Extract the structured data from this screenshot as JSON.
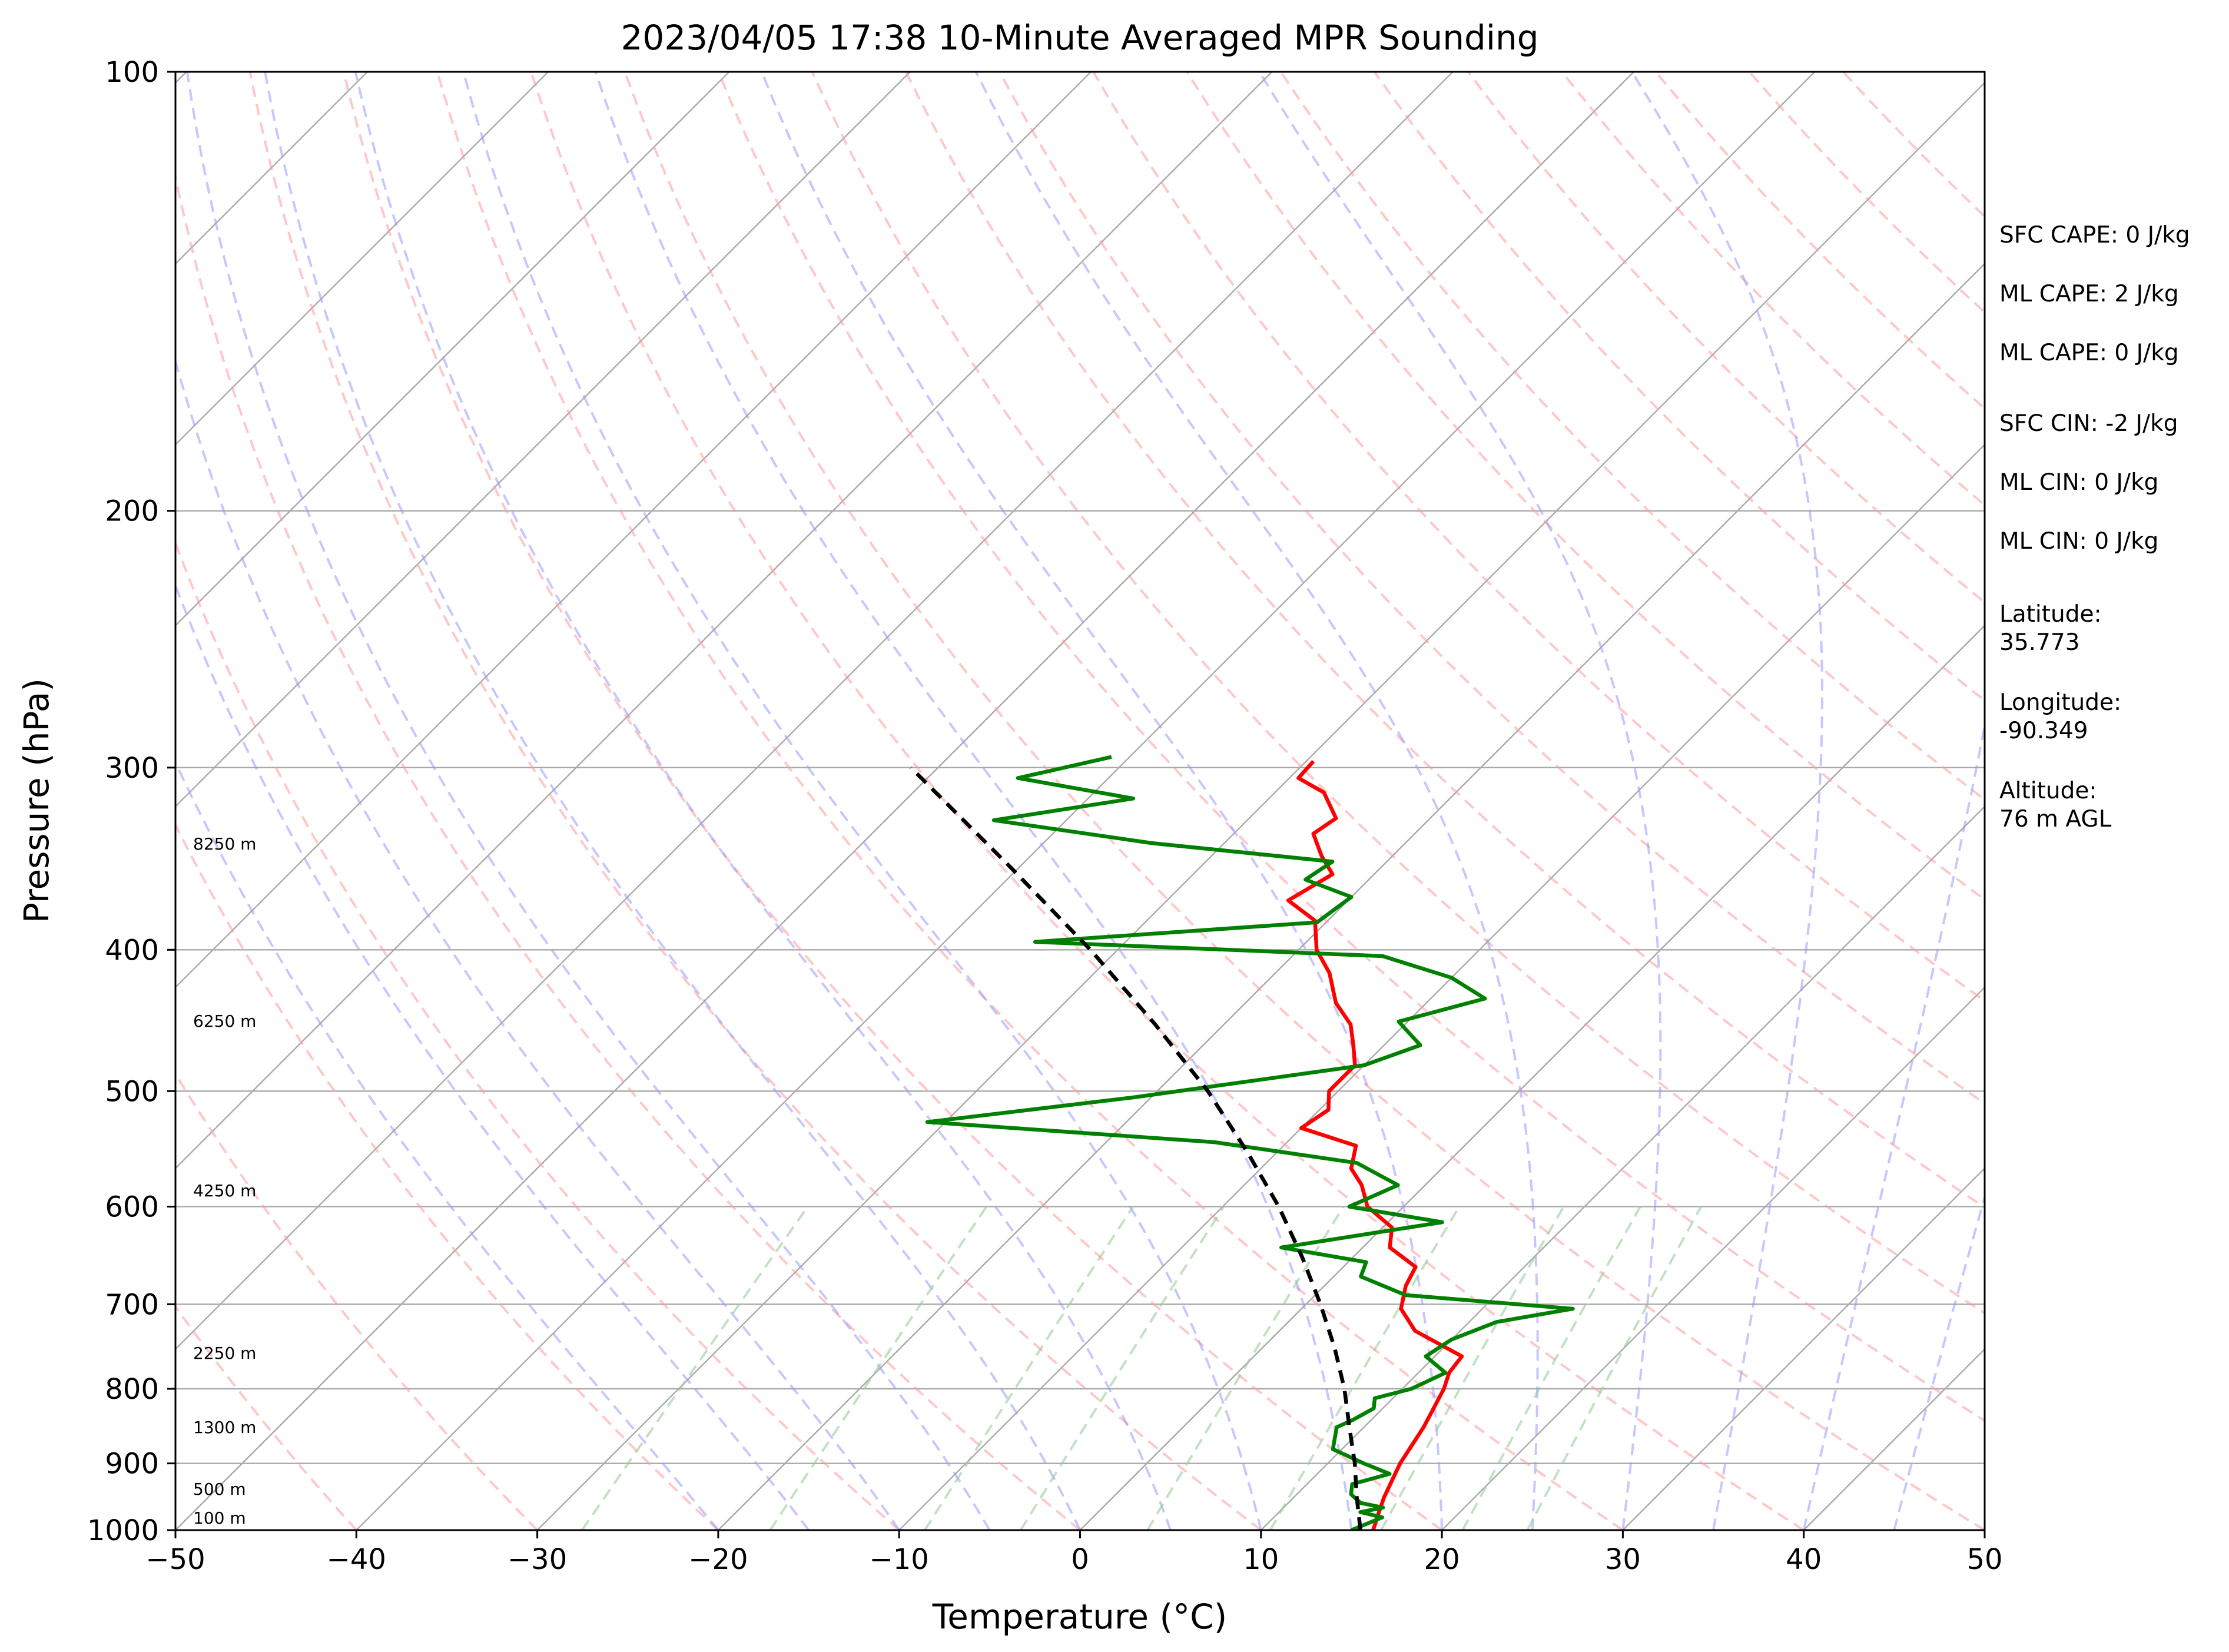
{
  "chart_data": {
    "type": "line",
    "title": "2023/04/05 17:38 10-Minute Averaged MPR Sounding",
    "xlabel": "Temperature (°C)",
    "ylabel": "Pressure (hPa)",
    "xlim": [
      -50,
      50
    ],
    "ylim": [
      1000,
      100
    ],
    "y_scale": "log",
    "skew": "skew-T log-P",
    "x_ticks": [
      {
        "value": -50,
        "label": "−50"
      },
      {
        "value": -40,
        "label": "−40"
      },
      {
        "value": -30,
        "label": "−30"
      },
      {
        "value": -20,
        "label": "−20"
      },
      {
        "value": -10,
        "label": "−10"
      },
      {
        "value": 0,
        "label": "0"
      },
      {
        "value": 10,
        "label": "10"
      },
      {
        "value": 20,
        "label": "20"
      },
      {
        "value": 30,
        "label": "30"
      },
      {
        "value": 40,
        "label": "40"
      },
      {
        "value": 50,
        "label": "50"
      }
    ],
    "y_ticks": [
      {
        "value": 100,
        "label": "100"
      },
      {
        "value": 200,
        "label": "200"
      },
      {
        "value": 300,
        "label": "300"
      },
      {
        "value": 400,
        "label": "400"
      },
      {
        "value": 500,
        "label": "500"
      },
      {
        "value": 600,
        "label": "600"
      },
      {
        "value": 700,
        "label": "700"
      },
      {
        "value": 800,
        "label": "800"
      },
      {
        "value": 900,
        "label": "900"
      },
      {
        "value": 1000,
        "label": "1000"
      }
    ],
    "grid": true,
    "reference_lines": {
      "isotherms_color": "#a9a9a9",
      "dry_adiabats_color": "#ff9999",
      "moist_adiabats_color": "#9999ff",
      "mixing_ratio_color": "#99cc99"
    },
    "series": [
      {
        "color": "#ff0000",
        "style": "solid",
        "points": [
          {
            "p": 1000,
            "t": 16.2
          },
          {
            "p": 975,
            "t": 15.6
          },
          {
            "p": 950,
            "t": 15.0
          },
          {
            "p": 900,
            "t": 14.0
          },
          {
            "p": 850,
            "t": 13.3
          },
          {
            "p": 800,
            "t": 12.3
          },
          {
            "p": 780,
            "t": 11.7
          },
          {
            "p": 760,
            "t": 11.5
          },
          {
            "p": 730,
            "t": 7.5
          },
          {
            "p": 705,
            "t": 5.5
          },
          {
            "p": 680,
            "t": 4.5
          },
          {
            "p": 660,
            "t": 4.0
          },
          {
            "p": 640,
            "t": 1.5
          },
          {
            "p": 620,
            "t": 0.5
          },
          {
            "p": 600,
            "t": -2.0
          },
          {
            "p": 580,
            "t": -3.5
          },
          {
            "p": 565,
            "t": -5.0
          },
          {
            "p": 545,
            "t": -6.0
          },
          {
            "p": 530,
            "t": -10.0
          },
          {
            "p": 515,
            "t": -9.5
          },
          {
            "p": 500,
            "t": -10.5
          },
          {
            "p": 480,
            "t": -10.5
          },
          {
            "p": 465,
            "t": -11.7
          },
          {
            "p": 450,
            "t": -13.0
          },
          {
            "p": 435,
            "t": -15.0
          },
          {
            "p": 415,
            "t": -17.0
          },
          {
            "p": 400,
            "t": -19.0
          },
          {
            "p": 382,
            "t": -20.7
          },
          {
            "p": 370,
            "t": -23.3
          },
          {
            "p": 355,
            "t": -22.3
          },
          {
            "p": 345,
            "t": -23.9
          },
          {
            "p": 333,
            "t": -25.6
          },
          {
            "p": 325,
            "t": -25.2
          },
          {
            "p": 312,
            "t": -27.3
          },
          {
            "p": 305,
            "t": -29.5
          },
          {
            "p": 297,
            "t": -29.6
          }
        ]
      },
      {
        "color": "#008000",
        "style": "solid",
        "points": [
          {
            "p": 1000,
            "t": 15.0
          },
          {
            "p": 990,
            "t": 15.5
          },
          {
            "p": 980,
            "t": 16.0
          },
          {
            "p": 972,
            "t": 14.5
          },
          {
            "p": 965,
            "t": 15.5
          },
          {
            "p": 958,
            "t": 14.0
          },
          {
            "p": 945,
            "t": 13.0
          },
          {
            "p": 930,
            "t": 12.5
          },
          {
            "p": 915,
            "t": 14.0
          },
          {
            "p": 900,
            "t": 12.0
          },
          {
            "p": 880,
            "t": 9.5
          },
          {
            "p": 865,
            "t": 9.0
          },
          {
            "p": 850,
            "t": 8.5
          },
          {
            "p": 840,
            "t": 9.0
          },
          {
            "p": 825,
            "t": 9.5
          },
          {
            "p": 812,
            "t": 9.0
          },
          {
            "p": 800,
            "t": 10.5
          },
          {
            "p": 780,
            "t": 11.5
          },
          {
            "p": 760,
            "t": 9.5
          },
          {
            "p": 740,
            "t": 10.0
          },
          {
            "p": 720,
            "t": 11.5
          },
          {
            "p": 705,
            "t": 15.0
          },
          {
            "p": 690,
            "t": 5.0
          },
          {
            "p": 670,
            "t": 1.5
          },
          {
            "p": 655,
            "t": 1.0
          },
          {
            "p": 640,
            "t": -4.5
          },
          {
            "p": 615,
            "t": 3.0
          },
          {
            "p": 600,
            "t": -3.0
          },
          {
            "p": 580,
            "t": -1.5
          },
          {
            "p": 560,
            "t": -5.0
          },
          {
            "p": 542,
            "t": -14.0
          },
          {
            "p": 525,
            "t": -31.0
          },
          {
            "p": 505,
            "t": -21.0
          },
          {
            "p": 480,
            "t": -10.0
          },
          {
            "p": 465,
            "t": -8.0
          },
          {
            "p": 448,
            "t": -10.5
          },
          {
            "p": 432,
            "t": -7.0
          },
          {
            "p": 418,
            "t": -10.0
          },
          {
            "p": 404,
            "t": -15.0
          },
          {
            "p": 395,
            "t": -35.0
          },
          {
            "p": 383,
            "t": -20.5
          },
          {
            "p": 368,
            "t": -20.0
          },
          {
            "p": 358,
            "t": -23.5
          },
          {
            "p": 348,
            "t": -23.0
          },
          {
            "p": 338,
            "t": -34.0
          },
          {
            "p": 326,
            "t": -44.0
          },
          {
            "p": 315,
            "t": -37.5
          },
          {
            "p": 305,
            "t": -45.0
          },
          {
            "p": 295,
            "t": -41.0
          }
        ]
      },
      {
        "color": "#000000",
        "style": "dashed",
        "points": [
          {
            "p": 1000,
            "t": 15.5
          },
          {
            "p": 950,
            "t": 13.5
          },
          {
            "p": 900,
            "t": 11.5
          },
          {
            "p": 850,
            "t": 9.2
          },
          {
            "p": 800,
            "t": 6.8
          },
          {
            "p": 750,
            "t": 4.0
          },
          {
            "p": 700,
            "t": 0.8
          },
          {
            "p": 650,
            "t": -2.8
          },
          {
            "p": 600,
            "t": -6.9
          },
          {
            "p": 550,
            "t": -11.7
          },
          {
            "p": 500,
            "t": -17.2
          },
          {
            "p": 450,
            "t": -23.8
          },
          {
            "p": 400,
            "t": -31.5
          },
          {
            "p": 350,
            "t": -40.7
          },
          {
            "p": 300,
            "t": -51.5
          }
        ]
      }
    ],
    "height_labels": [
      "8250 m",
      "6250 m",
      "4250 m",
      "2250 m",
      "1300 m",
      "500 m",
      "100 m"
    ],
    "side_annotations": [
      "SFC CAPE: 0 J/kg",
      "ML CAPE: 2 J/kg",
      "ML CAPE: 0 J/kg",
      "SFC CIN: -2 J/kg",
      "ML CIN: 0 J/kg",
      "ML CIN: 0 J/kg",
      "Latitude:",
      "35.773",
      "Longitude:",
      "-90.349",
      "Altitude:",
      "76 m AGL"
    ]
  }
}
